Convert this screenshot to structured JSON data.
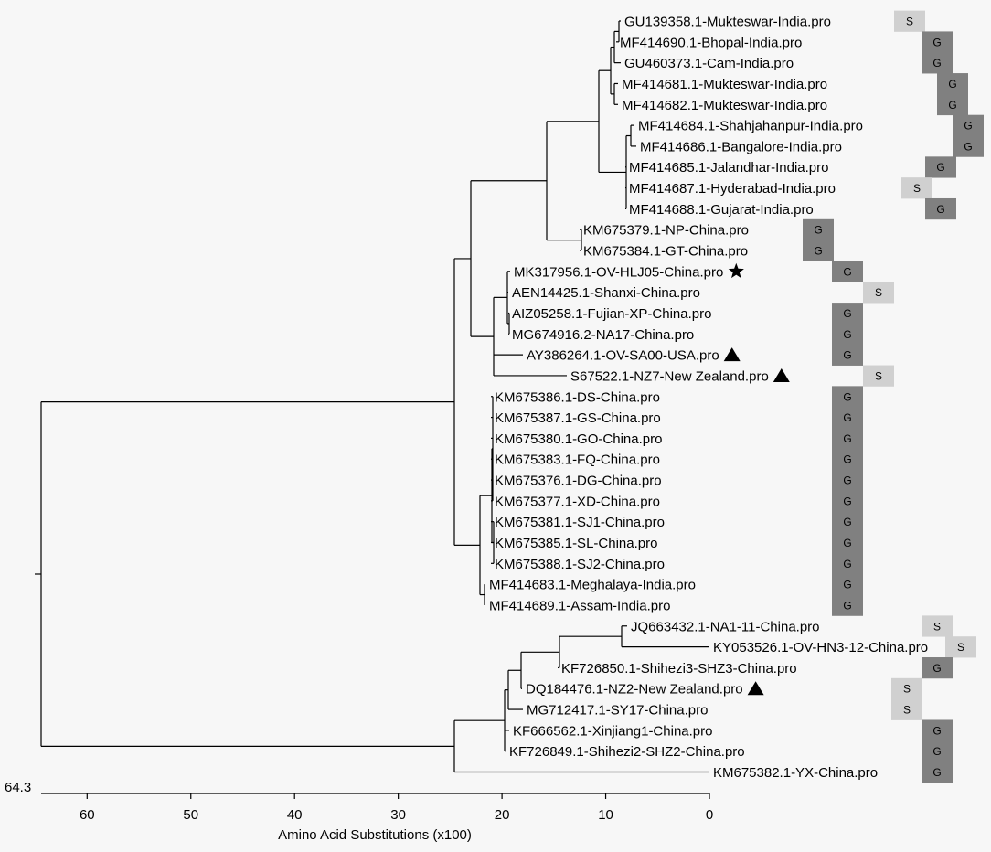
{
  "chart_data": {
    "type": "phylogenetic-tree",
    "xlabel": "Amino Acid Substitutions (x100)",
    "root_distance_label": "64.3",
    "xlim": [
      0,
      64.3
    ],
    "x_ticks": [
      "60",
      "50",
      "40",
      "30",
      "20",
      "10",
      "0"
    ],
    "x_tick_values": [
      60,
      50,
      40,
      30,
      20,
      10,
      0
    ],
    "colors": {
      "G": "#808080",
      "S": "#d0d0d0",
      "line": "#000000"
    },
    "leaves": [
      {
        "label": "GU139358.1-Mukteswar-India.pro",
        "type": "S",
        "marker": ""
      },
      {
        "label": "MF414690.1-Bhopal-India.pro",
        "type": "G",
        "marker": ""
      },
      {
        "label": "GU460373.1-Cam-India.pro",
        "type": "G",
        "marker": ""
      },
      {
        "label": "MF414681.1-Mukteswar-India.pro",
        "type": "G",
        "marker": ""
      },
      {
        "label": "MF414682.1-Mukteswar-India.pro",
        "type": "G",
        "marker": ""
      },
      {
        "label": "MF414684.1-Shahjahanpur-India.pro",
        "type": "G",
        "marker": ""
      },
      {
        "label": "MF414686.1-Bangalore-India.pro",
        "type": "G",
        "marker": ""
      },
      {
        "label": "MF414685.1-Jalandhar-India.pro",
        "type": "G",
        "marker": ""
      },
      {
        "label": "MF414687.1-Hyderabad-India.pro",
        "type": "S",
        "marker": ""
      },
      {
        "label": "MF414688.1-Gujarat-India.pro",
        "type": "G",
        "marker": ""
      },
      {
        "label": "KM675379.1-NP-China.pro",
        "type": "G",
        "marker": ""
      },
      {
        "label": "KM675384.1-GT-China.pro",
        "type": "G",
        "marker": ""
      },
      {
        "label": "MK317956.1-OV-HLJ05-China.pro",
        "type": "G",
        "marker": "star"
      },
      {
        "label": "AEN14425.1-Shanxi-China.pro",
        "type": "S",
        "marker": ""
      },
      {
        "label": "AIZ05258.1-Fujian-XP-China.pro",
        "type": "G",
        "marker": ""
      },
      {
        "label": "MG674916.2-NA17-China.pro",
        "type": "G",
        "marker": ""
      },
      {
        "label": "AY386264.1-OV-SA00-USA.pro",
        "type": "G",
        "marker": "triangle"
      },
      {
        "label": "S67522.1-NZ7-New Zealand.pro",
        "type": "S",
        "marker": "triangle"
      },
      {
        "label": "KM675386.1-DS-China.pro",
        "type": "G",
        "marker": ""
      },
      {
        "label": "KM675387.1-GS-China.pro",
        "type": "G",
        "marker": ""
      },
      {
        "label": "KM675380.1-GO-China.pro",
        "type": "G",
        "marker": ""
      },
      {
        "label": "KM675383.1-FQ-China.pro",
        "type": "G",
        "marker": ""
      },
      {
        "label": "KM675376.1-DG-China.pro",
        "type": "G",
        "marker": ""
      },
      {
        "label": "KM675377.1-XD-China.pro",
        "type": "G",
        "marker": ""
      },
      {
        "label": "KM675381.1-SJ1-China.pro",
        "type": "G",
        "marker": ""
      },
      {
        "label": "KM675385.1-SL-China.pro",
        "type": "G",
        "marker": ""
      },
      {
        "label": "KM675388.1-SJ2-China.pro",
        "type": "G",
        "marker": ""
      },
      {
        "label": "MF414683.1-Meghalaya-India.pro",
        "type": "G",
        "marker": ""
      },
      {
        "label": "MF414689.1-Assam-India.pro",
        "type": "G",
        "marker": ""
      },
      {
        "label": "JQ663432.1-NA1-11-China.pro",
        "type": "S",
        "marker": ""
      },
      {
        "label": "KY053526.1-OV-HN3-12-China.pro",
        "type": "S",
        "marker": ""
      },
      {
        "label": "KF726850.1-Shihezi3-SHZ3-China.pro",
        "type": "G",
        "marker": ""
      },
      {
        "label": "DQ184476.1-NZ2-New Zealand.pro",
        "type": "S",
        "marker": "triangle"
      },
      {
        "label": "MG712417.1-SY17-China.pro",
        "type": "S",
        "marker": ""
      },
      {
        "label": "KF666562.1-Xinjiang1-China.pro",
        "type": "G",
        "marker": ""
      },
      {
        "label": "KF726849.1-Shihezi2-SHZ2-China.pro",
        "type": "G",
        "marker": ""
      },
      {
        "label": "KM675382.1-YX-China.pro",
        "type": "G",
        "marker": ""
      }
    ]
  }
}
